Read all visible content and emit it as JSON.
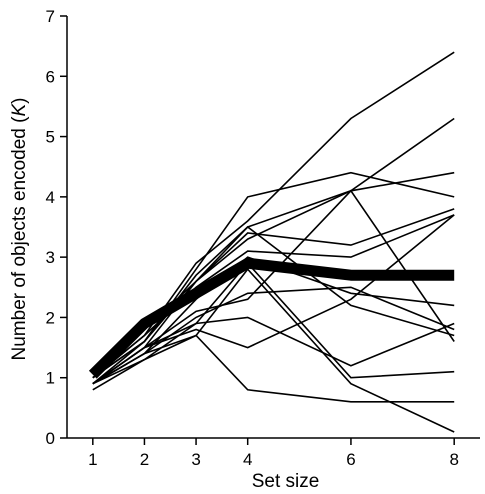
{
  "chart_data": {
    "type": "line",
    "xlabel": "Set size",
    "ylabel_main": "Number of objects encoded (",
    "ylabel_var": "K",
    "ylabel_end": ")",
    "x": [
      1,
      2,
      3,
      4,
      6,
      8
    ],
    "xticks": [
      "1",
      "2",
      "3",
      "4",
      "6",
      "8"
    ],
    "yticks": [
      "0",
      "1",
      "2",
      "3",
      "4",
      "5",
      "6",
      "7"
    ],
    "xlim": [
      0.5,
      8.5
    ],
    "ylim": [
      0,
      7
    ],
    "grid": false,
    "line_color": "#000000",
    "series": [
      {
        "values": [
          1.0,
          1.6,
          2.8,
          4.0,
          4.4,
          4.0
        ]
      },
      {
        "values": [
          1.0,
          1.7,
          2.9,
          3.6,
          5.3,
          6.4
        ]
      },
      {
        "values": [
          0.9,
          1.6,
          2.7,
          3.5,
          4.1,
          5.3
        ]
      },
      {
        "values": [
          0.9,
          1.5,
          2.6,
          3.3,
          4.1,
          4.4
        ]
      },
      {
        "values": [
          1.0,
          1.6,
          2.6,
          3.4,
          3.2,
          3.8
        ]
      },
      {
        "values": [
          1.0,
          1.7,
          2.5,
          3.1,
          3.0,
          3.7
        ]
      },
      {
        "values": [
          1.1,
          1.8,
          2.6,
          3.5,
          2.2,
          1.7
        ]
      },
      {
        "values": [
          0.9,
          1.4,
          2.3,
          3.0,
          2.4,
          2.2
        ]
      },
      {
        "values": [
          0.9,
          1.4,
          2.0,
          2.4,
          2.5,
          1.8
        ]
      },
      {
        "values": [
          0.9,
          1.5,
          2.1,
          2.3,
          4.1,
          1.6
        ]
      },
      {
        "values": [
          0.9,
          1.5,
          1.8,
          1.5,
          2.3,
          3.7
        ]
      },
      {
        "values": [
          0.8,
          1.3,
          1.9,
          2.0,
          1.2,
          1.9
        ]
      },
      {
        "values": [
          0.9,
          1.5,
          1.9,
          2.9,
          1.0,
          1.1
        ]
      },
      {
        "values": [
          0.9,
          1.4,
          1.7,
          2.8,
          0.9,
          0.1
        ]
      },
      {
        "values": [
          0.9,
          1.3,
          1.7,
          0.8,
          0.6,
          0.6
        ]
      }
    ],
    "mean_series": {
      "values": [
        1.05,
        1.9,
        2.4,
        2.9,
        2.7,
        2.7
      ]
    }
  }
}
